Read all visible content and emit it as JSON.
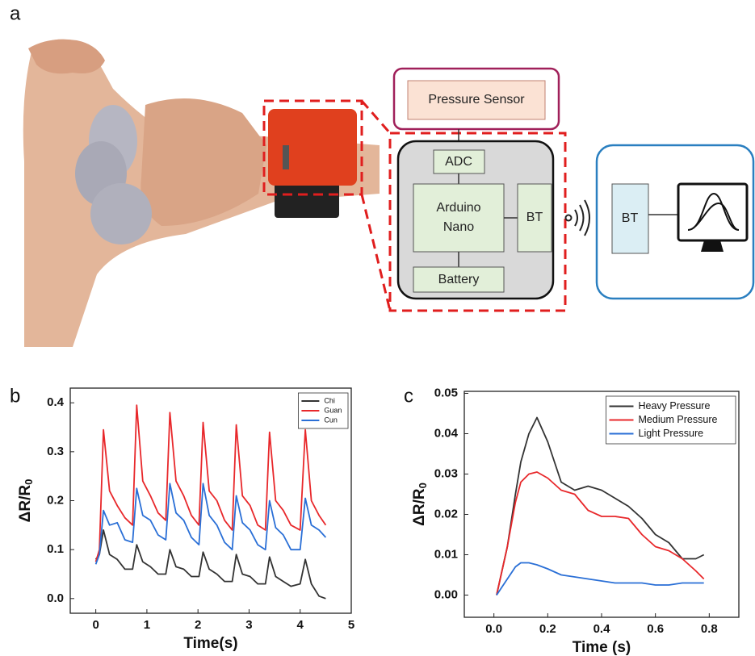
{
  "panels": {
    "a": "a",
    "b": "b",
    "c": "c"
  },
  "diagram": {
    "pressure_sensor": "Pressure Sensor",
    "adc": "ADC",
    "arduino": [
      "Arduino",
      "Nano"
    ],
    "bt_device": "BT",
    "battery": "Battery",
    "bt_receiver": "BT"
  },
  "chart_data": [
    {
      "type": "line",
      "x_label": "Time(s)",
      "y_label": {
        "main": "ΔR/R",
        "sub": "0"
      },
      "xlim": [
        -0.5,
        5.0
      ],
      "ylim": [
        -0.03,
        0.43
      ],
      "xticks": [
        0,
        1,
        2,
        3,
        4,
        5
      ],
      "yticks": [
        {
          "value": 0,
          "label": "0.0"
        },
        0.1,
        0.2,
        0.3,
        0.4
      ],
      "legend": "upper right",
      "x": [
        0.0,
        0.07,
        0.15,
        0.27,
        0.42,
        0.57,
        0.72,
        0.8,
        0.92,
        1.07,
        1.22,
        1.37,
        1.45,
        1.57,
        1.72,
        1.87,
        2.02,
        2.1,
        2.22,
        2.37,
        2.52,
        2.67,
        2.75,
        2.87,
        3.02,
        3.17,
        3.32,
        3.4,
        3.52,
        3.67,
        3.82,
        4.0,
        4.1,
        4.22,
        4.37,
        4.5
      ],
      "series": [
        {
          "name": "Chi",
          "color": "#333333",
          "values": [
            0.08,
            0.09,
            0.14,
            0.09,
            0.08,
            0.06,
            0.06,
            0.11,
            0.075,
            0.065,
            0.05,
            0.05,
            0.1,
            0.065,
            0.06,
            0.045,
            0.045,
            0.095,
            0.06,
            0.05,
            0.035,
            0.035,
            0.09,
            0.05,
            0.045,
            0.03,
            0.03,
            0.085,
            0.045,
            0.035,
            0.025,
            0.03,
            0.08,
            0.03,
            0.005,
            0.0
          ]
        },
        {
          "name": "Guan",
          "color": "#e8282b",
          "values": [
            0.075,
            0.1,
            0.345,
            0.22,
            0.19,
            0.165,
            0.15,
            0.395,
            0.24,
            0.21,
            0.175,
            0.16,
            0.38,
            0.24,
            0.21,
            0.17,
            0.15,
            0.36,
            0.22,
            0.2,
            0.16,
            0.14,
            0.355,
            0.21,
            0.19,
            0.15,
            0.14,
            0.34,
            0.2,
            0.18,
            0.15,
            0.14,
            0.345,
            0.2,
            0.17,
            0.15
          ]
        },
        {
          "name": "Cun",
          "color": "#2a6fd6",
          "values": [
            0.07,
            0.09,
            0.18,
            0.15,
            0.155,
            0.12,
            0.115,
            0.225,
            0.17,
            0.16,
            0.13,
            0.12,
            0.235,
            0.175,
            0.16,
            0.125,
            0.11,
            0.235,
            0.17,
            0.15,
            0.115,
            0.1,
            0.21,
            0.155,
            0.14,
            0.11,
            0.1,
            0.2,
            0.145,
            0.13,
            0.1,
            0.1,
            0.205,
            0.15,
            0.14,
            0.125
          ]
        }
      ]
    },
    {
      "type": "line",
      "x_label": "Time (s)",
      "y_label": {
        "main": "ΔR/R",
        "sub": "0"
      },
      "xlim": [
        -0.11,
        0.91
      ],
      "ylim": [
        -0.0055,
        0.0505
      ],
      "xticks": [
        {
          "value": 0,
          "label": "0.0"
        },
        0.2,
        0.4,
        0.6,
        0.8
      ],
      "yticks": [
        {
          "value": 0,
          "label": "0.00"
        },
        0.01,
        0.02,
        0.03,
        0.04,
        0.05
      ],
      "legend": "upper right",
      "x": [
        0.01,
        0.05,
        0.08,
        0.1,
        0.13,
        0.16,
        0.2,
        0.25,
        0.3,
        0.35,
        0.4,
        0.45,
        0.5,
        0.55,
        0.6,
        0.65,
        0.7,
        0.75,
        0.78
      ],
      "series": [
        {
          "name": "Heavy Pressure",
          "color": "#333333",
          "values": [
            0,
            0.012,
            0.025,
            0.033,
            0.04,
            0.044,
            0.038,
            0.028,
            0.026,
            0.027,
            0.026,
            0.024,
            0.022,
            0.019,
            0.015,
            0.013,
            0.009,
            0.009,
            0.01
          ]
        },
        {
          "name": "Medium Pressure",
          "color": "#e8282b",
          "values": [
            0,
            0.012,
            0.023,
            0.028,
            0.03,
            0.0305,
            0.029,
            0.026,
            0.025,
            0.021,
            0.0195,
            0.0195,
            0.019,
            0.015,
            0.012,
            0.011,
            0.009,
            0.006,
            0.004
          ]
        },
        {
          "name": "Light Pressure",
          "color": "#2a6fd6",
          "values": [
            0,
            0.004,
            0.007,
            0.008,
            0.008,
            0.0075,
            0.0065,
            0.005,
            0.0045,
            0.004,
            0.0035,
            0.003,
            0.003,
            0.003,
            0.0025,
            0.0025,
            0.003,
            0.003,
            0.003
          ]
        }
      ]
    }
  ]
}
